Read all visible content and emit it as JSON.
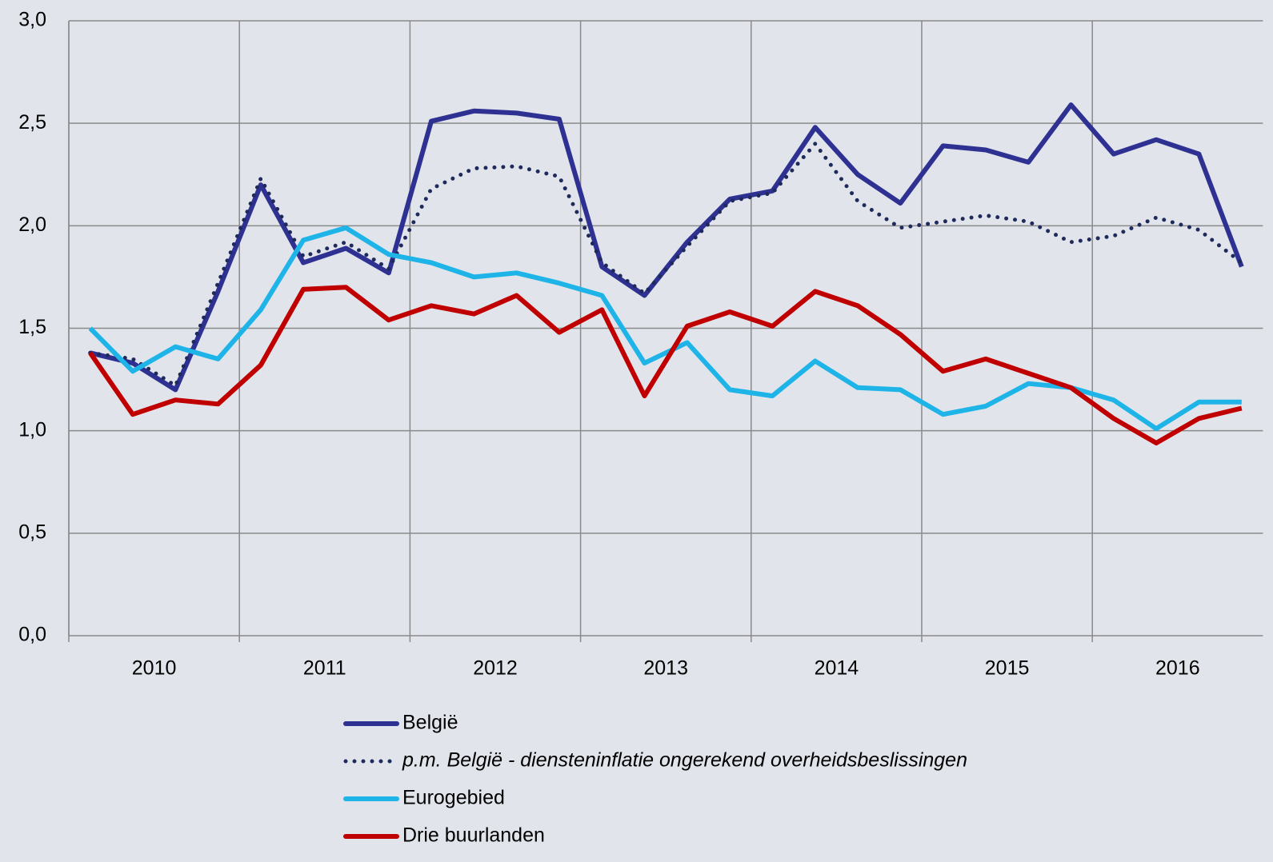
{
  "chart_data": {
    "type": "line",
    "categories": [
      "2010",
      null,
      null,
      null,
      "2011",
      null,
      null,
      null,
      "2012",
      null,
      null,
      null,
      "2013",
      null,
      null,
      null,
      "2014",
      null,
      null,
      null,
      "2015",
      null,
      null,
      null,
      "2016",
      null,
      null,
      null
    ],
    "ylim": [
      0,
      3
    ],
    "yticks": [
      {
        "value": 0,
        "label": "0,0"
      },
      {
        "value": 0.5,
        "label": "0,5"
      },
      {
        "value": 1,
        "label": "1,0"
      },
      {
        "value": 1.5,
        "label": "1,5"
      },
      {
        "value": 2,
        "label": "2,0"
      },
      {
        "value": 2.5,
        "label": "2,5"
      },
      {
        "value": 3,
        "label": "3,0"
      }
    ],
    "grid": true,
    "legend": "bottom",
    "series": [
      {
        "name": "België",
        "color": "#2e3192",
        "style": "solid",
        "values": [
          1.38,
          1.33,
          1.2,
          1.68,
          2.2,
          1.82,
          1.89,
          1.77,
          2.51,
          2.56,
          2.55,
          2.52,
          1.8,
          1.66,
          1.92,
          2.13,
          2.17,
          2.48,
          2.25,
          2.11,
          2.39,
          2.37,
          2.31,
          2.59,
          2.35,
          2.42,
          2.35,
          1.8
        ]
      },
      {
        "name": "p.m. België - diensteninflatie ongerekend overheidsbeslissingen",
        "color": "#1f2a5c",
        "style": "dotted",
        "values": [
          1.38,
          1.35,
          1.22,
          1.72,
          2.23,
          1.85,
          1.92,
          1.79,
          2.18,
          2.28,
          2.29,
          2.24,
          1.82,
          1.67,
          1.9,
          2.12,
          2.16,
          2.4,
          2.12,
          1.99,
          2.02,
          2.05,
          2.02,
          1.92,
          1.95,
          2.04,
          1.98,
          1.82
        ]
      },
      {
        "name": "Eurogebied",
        "color": "#1eb4e8",
        "style": "solid",
        "values": [
          1.5,
          1.29,
          1.41,
          1.35,
          1.59,
          1.93,
          1.99,
          1.86,
          1.82,
          1.75,
          1.77,
          1.72,
          1.66,
          1.33,
          1.43,
          1.2,
          1.17,
          1.34,
          1.21,
          1.2,
          1.08,
          1.12,
          1.23,
          1.21,
          1.15,
          1.01,
          1.14,
          1.14
        ]
      },
      {
        "name": "Drie buurlanden",
        "color": "#c00000",
        "style": "solid",
        "values": [
          1.38,
          1.08,
          1.15,
          1.13,
          1.32,
          1.69,
          1.7,
          1.54,
          1.61,
          1.57,
          1.66,
          1.48,
          1.59,
          1.17,
          1.51,
          1.58,
          1.51,
          1.68,
          1.61,
          1.47,
          1.29,
          1.35,
          1.28,
          1.21,
          1.06,
          0.94,
          1.06,
          1.11
        ]
      }
    ]
  }
}
